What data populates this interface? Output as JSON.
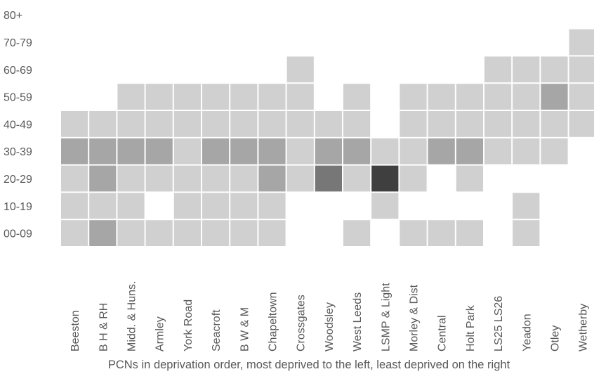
{
  "chart_data": {
    "type": "heatmap",
    "title": "",
    "xlabel": "PCNs in deprivation order, most deprived to the left, least deprived on the right",
    "ylabel": "",
    "x_categories": [
      "Beeston",
      "B H & RH",
      "Midd. & Huns.",
      "Armley",
      "York Road",
      "Seacroft",
      "B W & M",
      "Chapeltown",
      "Crossgates",
      "Woodsley",
      "West Leeds",
      "LSMP & Light",
      "Morley & Dist",
      "Central",
      "Holt Park",
      "LS25 LS26",
      "Yeadon",
      "Otley",
      "Wetherby"
    ],
    "y_categories": [
      "00-09",
      "10-19",
      "20-29",
      "30-39",
      "40-49",
      "50-59",
      "60-69",
      "70-79",
      "80+"
    ],
    "levels": {
      "1": "#d0d0d0",
      "2": "#a6a6a6",
      "3": "#777777",
      "4": "#3f3f3f"
    },
    "values": [
      [
        1,
        1,
        1,
        2,
        1,
        0,
        0,
        0,
        0
      ],
      [
        2,
        1,
        2,
        2,
        1,
        0,
        0,
        0,
        0
      ],
      [
        1,
        1,
        1,
        2,
        1,
        1,
        0,
        0,
        0
      ],
      [
        1,
        0,
        1,
        2,
        1,
        1,
        0,
        0,
        0
      ],
      [
        1,
        1,
        1,
        1,
        1,
        1,
        0,
        0,
        0
      ],
      [
        1,
        1,
        1,
        2,
        1,
        1,
        0,
        0,
        0
      ],
      [
        1,
        1,
        1,
        2,
        1,
        1,
        0,
        0,
        0
      ],
      [
        1,
        1,
        2,
        2,
        1,
        1,
        0,
        0,
        0
      ],
      [
        0,
        0,
        1,
        1,
        1,
        1,
        1,
        0,
        0
      ],
      [
        0,
        0,
        3,
        2,
        1,
        0,
        0,
        0,
        0
      ],
      [
        1,
        0,
        1,
        2,
        1,
        1,
        0,
        0,
        0
      ],
      [
        0,
        1,
        4,
        1,
        0,
        0,
        0,
        0,
        0
      ],
      [
        1,
        0,
        1,
        1,
        1,
        1,
        0,
        0,
        0
      ],
      [
        1,
        0,
        0,
        2,
        1,
        1,
        0,
        0,
        0
      ],
      [
        1,
        0,
        1,
        2,
        1,
        1,
        0,
        0,
        0
      ],
      [
        0,
        0,
        0,
        1,
        1,
        1,
        1,
        0,
        0
      ],
      [
        1,
        1,
        0,
        1,
        1,
        1,
        1,
        0,
        0
      ],
      [
        0,
        0,
        0,
        1,
        1,
        2,
        1,
        0,
        0
      ],
      [
        0,
        0,
        0,
        0,
        1,
        1,
        1,
        1,
        0
      ]
    ]
  }
}
